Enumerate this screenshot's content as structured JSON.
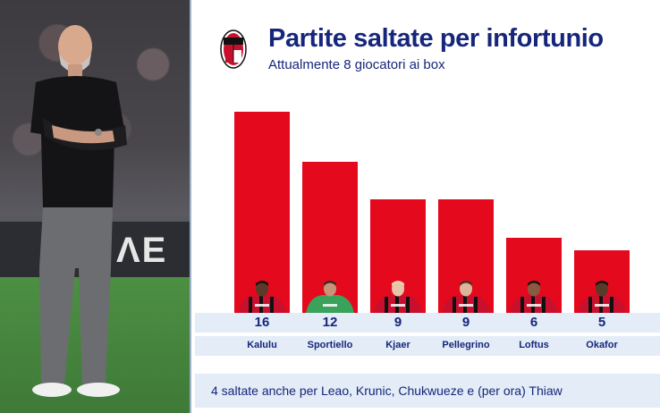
{
  "header": {
    "title": "Partite saltate per infortunio",
    "subtitle": "Attualmente 8 giocatori ai box"
  },
  "footnote": "4 saltate anche per Leao, Krunic, Chukwueze e (per ora) Thiaw",
  "photo": {
    "board_text": "ΛE"
  },
  "colors": {
    "bar": "#e5091d",
    "text": "#16267a",
    "band": "#e3ecf7",
    "milan_red": "#c8102e"
  },
  "chart_data": {
    "type": "bar",
    "title": "Partite saltate per infortunio",
    "subtitle": "Attualmente 8 giocatori ai box",
    "categories": [
      "Kalulu",
      "Sportiello",
      "Kjaer",
      "Pellegrino",
      "Loftus",
      "Okafor"
    ],
    "values": [
      16,
      12,
      9,
      9,
      6,
      5
    ],
    "ylim": [
      0,
      16
    ],
    "grid": false,
    "legend": "none"
  }
}
